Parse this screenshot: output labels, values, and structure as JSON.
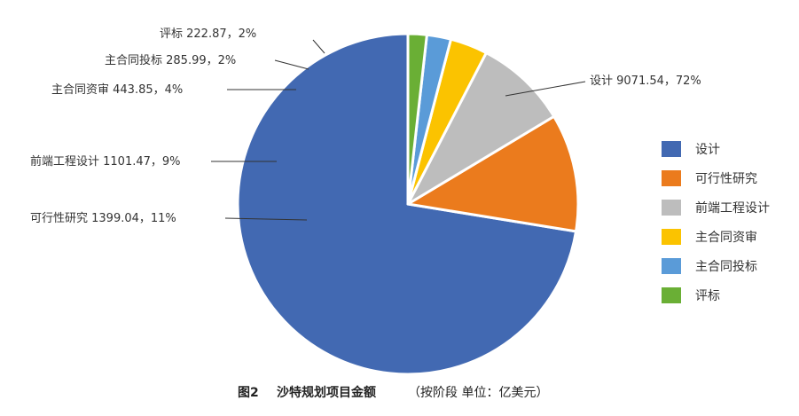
{
  "chart_data": {
    "type": "pie",
    "unit_note": "按阶段 单位：亿美元",
    "slices": [
      {
        "name": "设计",
        "value": 9071.54,
        "percent": "72%",
        "color": "#4269B2"
      },
      {
        "name": "可行性研究",
        "value": 1399.04,
        "percent": "11%",
        "color": "#EB7B1D"
      },
      {
        "name": "前端工程设计",
        "value": 1101.47,
        "percent": "9%",
        "color": "#BDBDBD"
      },
      {
        "name": "主合同资审",
        "value": 443.85,
        "percent": "4%",
        "color": "#FBC300"
      },
      {
        "name": "主合同投标",
        "value": 285.99,
        "percent": "2%",
        "color": "#5A9BD8"
      },
      {
        "name": "评标",
        "value": 222.87,
        "percent": "2%",
        "color": "#6AAF35"
      }
    ],
    "slice_labels": [
      "设计  9071.54，72%",
      "可行性研究  1399.04，11%",
      "前端工程设计  1101.47，9%",
      "主合同资审  443.85，4%",
      "主合同投标  285.99，2%",
      "评标  222.87，2%"
    ],
    "legend": {
      "placement": "right",
      "entries": [
        "设计",
        "可行性研究",
        "前端工程设计",
        "主合同资审",
        "主合同投标",
        "评标"
      ]
    }
  },
  "caption": {
    "label": "图2",
    "title": "沙特规划项目金额",
    "subtitle": "（按阶段 单位：亿美元）"
  }
}
